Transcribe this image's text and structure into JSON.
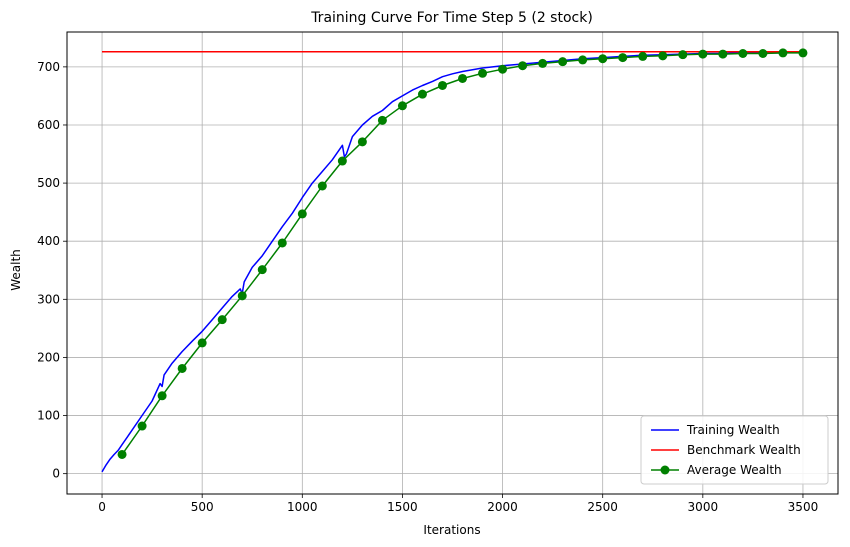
{
  "chart_data": {
    "type": "line",
    "title": "Training Curve For Time Step 5 (2 stock)",
    "xlabel": "Iterations",
    "ylabel": "Wealth",
    "xlim": [
      -175,
      3675
    ],
    "ylim": [
      -35,
      760
    ],
    "xticks": [
      0,
      500,
      1000,
      1500,
      2000,
      2500,
      3000,
      3500
    ],
    "yticks": [
      0,
      100,
      200,
      300,
      400,
      500,
      600,
      700
    ],
    "grid": true,
    "legend_position": "lower-right",
    "series": [
      {
        "name": "Training Wealth",
        "color": "#0000ff",
        "marker": "none",
        "x": [
          0,
          20,
          40,
          60,
          80,
          100,
          150,
          200,
          250,
          290,
          300,
          310,
          350,
          400,
          450,
          500,
          550,
          600,
          650,
          690,
          700,
          710,
          750,
          800,
          850,
          900,
          950,
          1000,
          1050,
          1100,
          1150,
          1200,
          1210,
          1220,
          1250,
          1300,
          1350,
          1400,
          1450,
          1500,
          1550,
          1600,
          1650,
          1700,
          1750,
          1800,
          1850,
          1900,
          1950,
          2000,
          2100,
          2200,
          2300,
          2400,
          2500,
          2600,
          2700,
          2800,
          2900,
          3000,
          3100,
          3200,
          3300,
          3400,
          3500
        ],
        "y": [
          3,
          15,
          25,
          33,
          40,
          50,
          75,
          100,
          125,
          155,
          150,
          170,
          190,
          210,
          228,
          245,
          265,
          285,
          305,
          318,
          310,
          330,
          355,
          375,
          400,
          425,
          448,
          475,
          500,
          520,
          540,
          565,
          545,
          550,
          580,
          600,
          615,
          625,
          640,
          650,
          660,
          668,
          675,
          683,
          688,
          692,
          695,
          698,
          700,
          702,
          705,
          708,
          711,
          714,
          716,
          718,
          720,
          721,
          722,
          723,
          723,
          724,
          724,
          724,
          725
        ]
      },
      {
        "name": "Benchmark Wealth",
        "color": "#ff0000",
        "marker": "none",
        "x": [
          0,
          3500
        ],
        "y": [
          726,
          726
        ]
      },
      {
        "name": "Average Wealth",
        "color": "#008000",
        "marker": "circle",
        "x": [
          100,
          200,
          300,
          400,
          500,
          600,
          700,
          800,
          900,
          1000,
          1100,
          1200,
          1300,
          1400,
          1500,
          1600,
          1700,
          1800,
          1900,
          2000,
          2100,
          2200,
          2300,
          2400,
          2500,
          2600,
          2700,
          2800,
          2900,
          3000,
          3100,
          3200,
          3300,
          3400,
          3500
        ],
        "y": [
          33,
          82,
          134,
          181,
          225,
          265,
          306,
          351,
          397,
          447,
          495,
          538,
          571,
          608,
          633,
          653,
          668,
          680,
          689,
          696,
          702,
          706,
          709,
          712,
          714,
          716,
          718,
          719,
          721,
          722,
          722,
          723,
          723,
          724,
          724
        ]
      }
    ]
  }
}
